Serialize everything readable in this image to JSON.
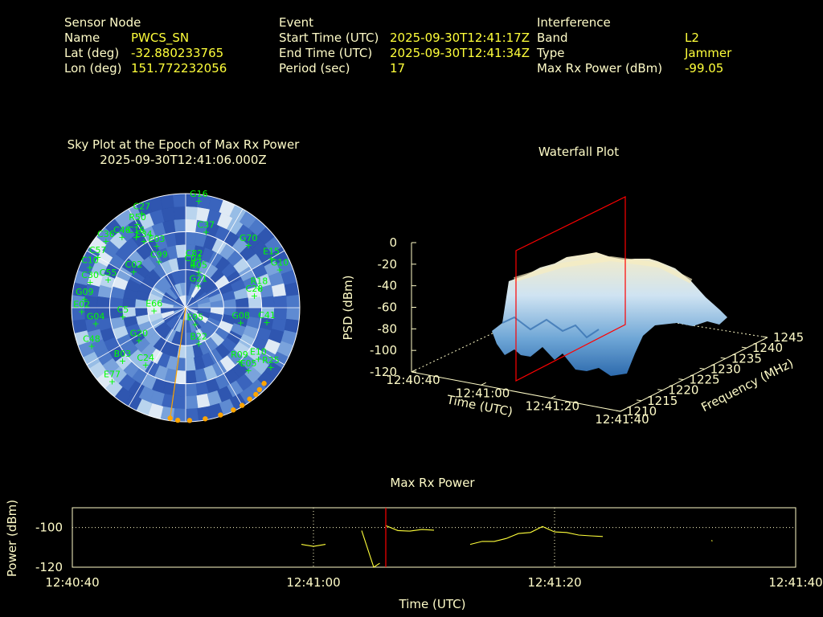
{
  "info": {
    "sensor": {
      "header": "Sensor Node",
      "rows": [
        {
          "label": "Name",
          "value": "PWCS_SN"
        },
        {
          "label": "Lat (deg)",
          "value": "-32.880233765"
        },
        {
          "label": "Lon (deg)",
          "value": "151.772232056"
        }
      ]
    },
    "event": {
      "header": "Event",
      "rows": [
        {
          "label": "Start Time (UTC)",
          "value": "2025-09-30T12:41:17Z"
        },
        {
          "label": "End Time (UTC)",
          "value": "2025-09-30T12:41:34Z"
        },
        {
          "label": "Period (sec)",
          "value": "17"
        }
      ]
    },
    "interference": {
      "header": "Interference",
      "rows": [
        {
          "label": "Band",
          "value": "L2"
        },
        {
          "label": "Type",
          "value": "Jammer"
        },
        {
          "label": "Max Rx Power (dBm)",
          "value": "-99.05"
        }
      ]
    }
  },
  "colors": {
    "text": "#fffcc8",
    "value": "#ffff3a",
    "satellite": "#00ff00",
    "marker": "#ffa500",
    "cursor": "#ff0000",
    "trace": "#ffff3a",
    "sky_base": "#3a5fb8",
    "surface_high": "#f3e8c0",
    "surface_low": "#3a7fbf"
  },
  "chart_data": [
    {
      "type": "sky",
      "title": "Sky Plot at the Epoch of Max Rx Power",
      "subtitle": "2025-09-30T12:41:06.000Z",
      "satellites": [
        {
          "id": "G16",
          "az": 7,
          "el": 5
        },
        {
          "id": "C27",
          "az": 335,
          "el": 8
        },
        {
          "id": "R50",
          "az": 330,
          "el": 14
        },
        {
          "id": "C46",
          "az": 318,
          "el": 15
        },
        {
          "id": "C16",
          "az": 325,
          "el": 22
        },
        {
          "id": "C36",
          "az": 310,
          "el": 8
        },
        {
          "id": "E34",
          "az": 328,
          "el": 28
        },
        {
          "id": "C37",
          "az": 15,
          "el": 28
        },
        {
          "id": "E03",
          "az": 335,
          "el": 36
        },
        {
          "id": "C57",
          "az": 300,
          "el": 10
        },
        {
          "id": "G70",
          "az": 45,
          "el": 20
        },
        {
          "id": "C10",
          "az": 293,
          "el": 8
        },
        {
          "id": "E15",
          "az": 60,
          "el": 12
        },
        {
          "id": "G10",
          "az": 68,
          "el": 10
        },
        {
          "id": "C82",
          "az": 10,
          "el": 52
        },
        {
          "id": "C99",
          "az": 330,
          "el": 48
        },
        {
          "id": "C04",
          "az": 10,
          "el": 56
        },
        {
          "id": "C30",
          "az": 285,
          "el": 12
        },
        {
          "id": "C55",
          "az": 290,
          "el": 25
        },
        {
          "id": "C02",
          "az": 305,
          "el": 40
        },
        {
          "id": "R05",
          "az": 20,
          "el": 60
        },
        {
          "id": "R18",
          "az": 75,
          "el": 30
        },
        {
          "id": "C28",
          "az": 80,
          "el": 35
        },
        {
          "id": "G09",
          "az": 275,
          "el": 10
        },
        {
          "id": "G21",
          "az": 30,
          "el": 70
        },
        {
          "id": "E02",
          "az": 268,
          "el": 8
        },
        {
          "id": "G04",
          "az": 260,
          "el": 18
        },
        {
          "id": "C5",
          "az": 262,
          "el": 40
        },
        {
          "id": "E66",
          "az": 265,
          "el": 65
        },
        {
          "id": "G08",
          "az": 105,
          "el": 45
        },
        {
          "id": "C41",
          "az": 100,
          "el": 25
        },
        {
          "id": "E95",
          "az": 150,
          "el": 75
        },
        {
          "id": "C48",
          "az": 248,
          "el": 10
        },
        {
          "id": "G20",
          "az": 235,
          "el": 45
        },
        {
          "id": "B03",
          "az": 230,
          "el": 25
        },
        {
          "id": "E10",
          "az": 125,
          "el": 20
        },
        {
          "id": "E05",
          "az": 135,
          "el": 20
        },
        {
          "id": "R09",
          "az": 135,
          "el": 30
        },
        {
          "id": "B22",
          "az": 160,
          "el": 60
        },
        {
          "id": "C24",
          "az": 215,
          "el": 35
        },
        {
          "id": "E77",
          "az": 225,
          "el": 8
        },
        {
          "id": "R25",
          "az": 125,
          "el": 8
        }
      ],
      "elevation_rings": [
        0,
        30,
        60
      ],
      "spokes": [
        0,
        30,
        60,
        90,
        120,
        150,
        180,
        210,
        240,
        270,
        300,
        330
      ],
      "jammer_track": {
        "az": [
          188,
          184,
          178,
          170,
          162,
          155,
          150,
          145,
          141,
          138,
          134
        ],
        "el": [
          2,
          1,
          1,
          1,
          1,
          1,
          1,
          2,
          2,
          3,
          4
        ]
      },
      "jammer_line": {
        "az": 188,
        "el_from": 90,
        "el_to": 2
      }
    },
    {
      "type": "surface3d",
      "title": "Waterfall Plot",
      "zlabel": "PSD (dBm)",
      "xlabel": "Time (UTC)",
      "ylabel": "Frequency (MHz)",
      "z_ticks": [
        "0",
        "-20",
        "-40",
        "-60",
        "-80",
        "-100",
        "-120"
      ],
      "x_ticks": [
        "12:40:40",
        "12:41:00",
        "12:41:20",
        "12:41:40"
      ],
      "y_ticks": [
        "1210",
        "1215",
        "1220",
        "1225",
        "1230",
        "1235",
        "1240",
        "1245"
      ],
      "zlim": [
        -120,
        0
      ],
      "xlim": [
        "12:40:40",
        "12:41:40"
      ],
      "ylim": [
        1210,
        1245
      ],
      "cursor_time": "12:41:06"
    },
    {
      "type": "line",
      "title": "Max Rx Power",
      "xlabel": "Time (UTC)",
      "ylabel": "Power (dBm)",
      "x_ticks": [
        "12:40:40",
        "12:41:00",
        "12:41:20",
        "12:41:40"
      ],
      "y_ticks": [
        "-100",
        "-120"
      ],
      "xlim": [
        "12:40:40",
        "12:41:40"
      ],
      "ylim": [
        -120,
        -90
      ],
      "cursor": "12:41:06",
      "segments": [
        [
          [
            "12:40:59",
            -108.5
          ],
          [
            "12:41:00",
            -109.5
          ],
          [
            "12:41:01",
            -108.5
          ]
        ],
        [
          [
            "12:41:04",
            -101.5
          ],
          [
            "12:41:05",
            -120
          ],
          [
            "12:41:05.5",
            -118
          ]
        ],
        [
          [
            "12:41:06",
            -99.05
          ],
          [
            "12:41:07",
            -101.5
          ],
          [
            "12:41:08",
            -101.8
          ],
          [
            "12:41:09",
            -101
          ],
          [
            "12:41:10",
            -101.3
          ]
        ],
        [
          [
            "12:41:13",
            -108.5
          ],
          [
            "12:41:14",
            -107
          ],
          [
            "12:41:15",
            -107
          ],
          [
            "12:41:16",
            -105.5
          ],
          [
            "12:41:17",
            -103
          ],
          [
            "12:41:18",
            -102.5
          ],
          [
            "12:41:19",
            -99.5
          ],
          [
            "12:41:20",
            -102.2
          ],
          [
            "12:41:21",
            -102.5
          ],
          [
            "12:41:22",
            -103.8
          ],
          [
            "12:41:23",
            -104.2
          ],
          [
            "12:41:24",
            -104.5
          ]
        ],
        [
          [
            "12:41:33",
            -106.5
          ],
          [
            "12:41:33.1",
            -106.8
          ]
        ]
      ]
    }
  ]
}
